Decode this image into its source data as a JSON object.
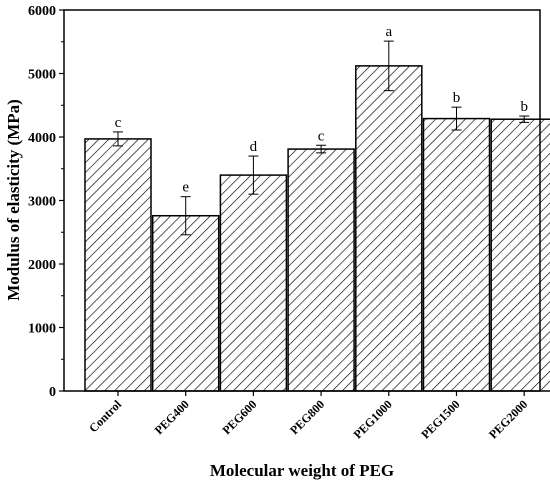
{
  "chart_data": {
    "type": "bar",
    "title": "",
    "xlabel": "Molecular weight of PEG",
    "ylabel": "Modulus of elasticity (MPa)",
    "categories": [
      "Control",
      "PEG400",
      "PEG600",
      "PEG800",
      "PEG1000",
      "PEG1500",
      "PEG2000"
    ],
    "values": [
      3970,
      2760,
      3400,
      3810,
      5120,
      4290,
      4280
    ],
    "errors": [
      110,
      300,
      300,
      60,
      390,
      180,
      50
    ],
    "significance": [
      "c",
      "e",
      "d",
      "c",
      "a",
      "b",
      "b"
    ],
    "ylim": [
      0,
      6000
    ],
    "yticks": [
      "0",
      "1000",
      "2000",
      "3000",
      "4000",
      "5000",
      "6000"
    ],
    "grid": false,
    "bar_fill": "diagonal-hatch",
    "bar_color": "#000000"
  }
}
